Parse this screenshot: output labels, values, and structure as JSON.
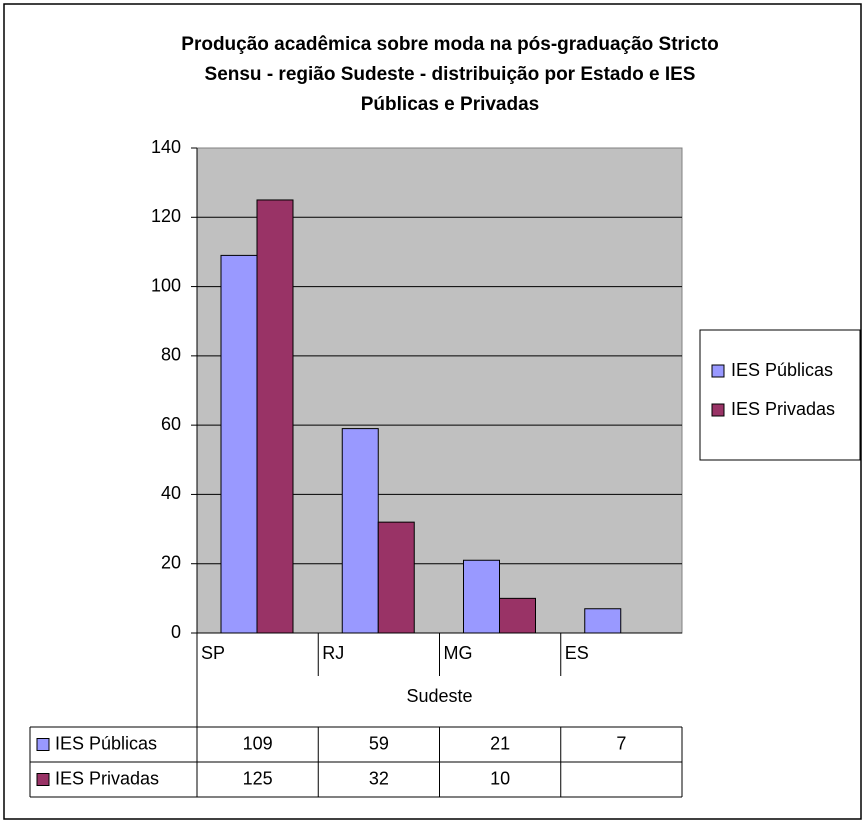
{
  "chart_data": {
    "type": "bar",
    "title": [
      "Produção acadêmica sobre moda na pós-graduação Stricto",
      "Sensu - região Sudeste - distribuição por Estado e IES",
      "Públicas e Privadas"
    ],
    "categories": [
      "SP",
      "RJ",
      "MG",
      "ES"
    ],
    "group_label": "Sudeste",
    "series": [
      {
        "name": "IES Públicas",
        "color": "#9999ff",
        "values": [
          109,
          59,
          21,
          7
        ]
      },
      {
        "name": "IES Privadas",
        "color": "#993366",
        "values": [
          125,
          32,
          10,
          null
        ]
      }
    ],
    "ylim": [
      0,
      140
    ],
    "yticks": [
      0,
      20,
      40,
      60,
      80,
      100,
      120,
      140
    ],
    "grid": true,
    "legend": "right",
    "data_table": true
  }
}
